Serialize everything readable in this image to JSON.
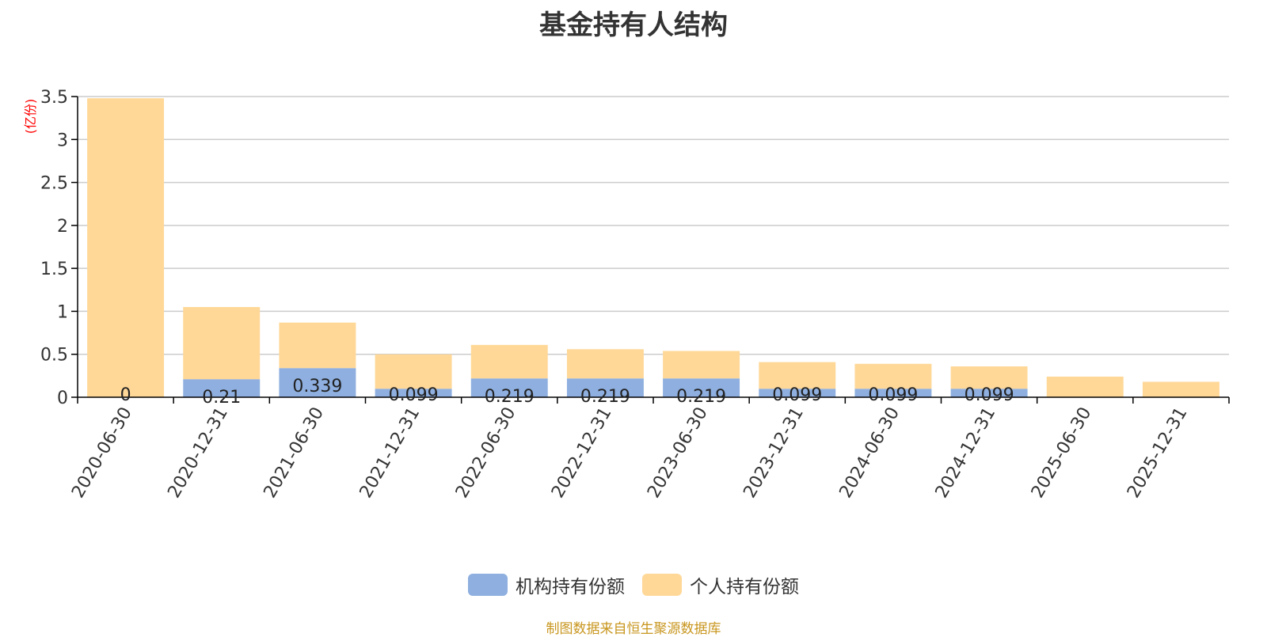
{
  "title": "基金持有人结构",
  "source": "制图数据来自恒生聚源数据库",
  "colors": {
    "institutional": "#8eafdf",
    "individual": "#ffd898",
    "unit": "#ff0000",
    "source": "#c8961e"
  },
  "chart_data": {
    "type": "bar",
    "stacked": true,
    "ylabel": "(亿份)",
    "ylim": [
      0,
      3.5
    ],
    "yticks": [
      "0",
      "0.5",
      "1",
      "1.5",
      "2",
      "2.5",
      "3",
      "3.5"
    ],
    "grid": true,
    "legend_position": "bottom",
    "categories": [
      "2020-06-30",
      "2020-12-31",
      "2021-06-30",
      "2021-12-31",
      "2022-06-30",
      "2022-12-31",
      "2023-06-30",
      "2023-12-31",
      "2024-06-30",
      "2024-12-31",
      "2025-06-30",
      "2025-12-31"
    ],
    "series": [
      {
        "name": "机构持有份额",
        "values": [
          0,
          0.21,
          0.339,
          0.099,
          0.219,
          0.219,
          0.219,
          0.099,
          0.099,
          0.099,
          0,
          0
        ],
        "labels": [
          "0",
          "0.21",
          "0.339",
          "0.099",
          "0.219",
          "0.219",
          "0.219",
          "0.099",
          "0.099",
          "0.099",
          "",
          ""
        ]
      },
      {
        "name": "个人持有份额",
        "values": [
          3.48,
          0.84,
          0.53,
          0.4,
          0.39,
          0.34,
          0.32,
          0.31,
          0.29,
          0.26,
          0.24,
          0.18
        ]
      }
    ]
  }
}
